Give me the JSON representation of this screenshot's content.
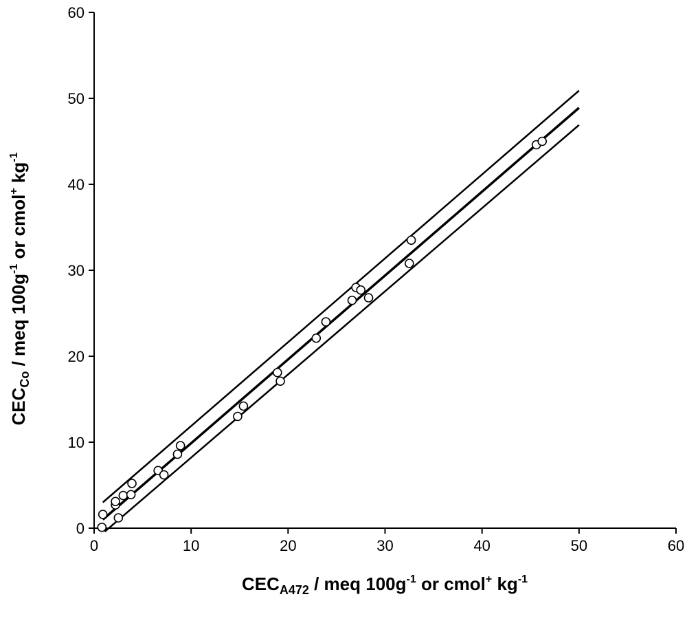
{
  "chart_data": {
    "type": "scatter",
    "title": "",
    "xlabel": {
      "main": "CEC",
      "sub": "A472",
      "rest1": " / meq 100g",
      "sup1": "-1",
      "rest2": " or cmol",
      "sup2": "+",
      "rest3": " kg",
      "sup3": "-1"
    },
    "ylabel": {
      "main": "CEC",
      "sub": "Co",
      "rest1": " / meq 100g",
      "sup1": "-1",
      "rest2": " or cmol",
      "sup2": "+",
      "rest3": " kg",
      "sup3": "-1"
    },
    "xlim": [
      0,
      60
    ],
    "ylim": [
      0,
      60
    ],
    "xticks": [
      0,
      10,
      20,
      30,
      40,
      50,
      60
    ],
    "yticks": [
      0,
      10,
      20,
      30,
      40,
      50,
      60
    ],
    "grid": false,
    "points": [
      [
        0.8,
        0.1
      ],
      [
        0.9,
        1.6
      ],
      [
        2.5,
        1.2
      ],
      [
        2.2,
        2.7
      ],
      [
        2.2,
        3.1
      ],
      [
        3.0,
        3.8
      ],
      [
        3.8,
        3.9
      ],
      [
        3.9,
        5.2
      ],
      [
        6.6,
        6.7
      ],
      [
        7.2,
        6.2
      ],
      [
        8.6,
        8.6
      ],
      [
        8.9,
        9.6
      ],
      [
        14.8,
        13.0
      ],
      [
        15.4,
        14.2
      ],
      [
        18.9,
        18.1
      ],
      [
        19.2,
        17.1
      ],
      [
        22.9,
        22.1
      ],
      [
        23.9,
        24.0
      ],
      [
        26.6,
        26.5
      ],
      [
        27.0,
        28.0
      ],
      [
        27.5,
        27.7
      ],
      [
        28.3,
        26.8
      ],
      [
        32.5,
        30.8
      ],
      [
        32.7,
        33.5
      ],
      [
        45.6,
        44.6
      ],
      [
        46.2,
        45.0
      ]
    ],
    "lines": [
      {
        "name": "upper-bound",
        "x": [
          0.9,
          50
        ],
        "y": [
          3.0,
          50.9
        ],
        "weight": "thin"
      },
      {
        "name": "regression",
        "x": [
          0.9,
          50
        ],
        "y": [
          1.0,
          48.9
        ],
        "weight": "bold"
      },
      {
        "name": "lower-bound",
        "x": [
          1.1,
          50
        ],
        "y": [
          -0.4,
          46.9
        ],
        "weight": "thin"
      }
    ]
  }
}
